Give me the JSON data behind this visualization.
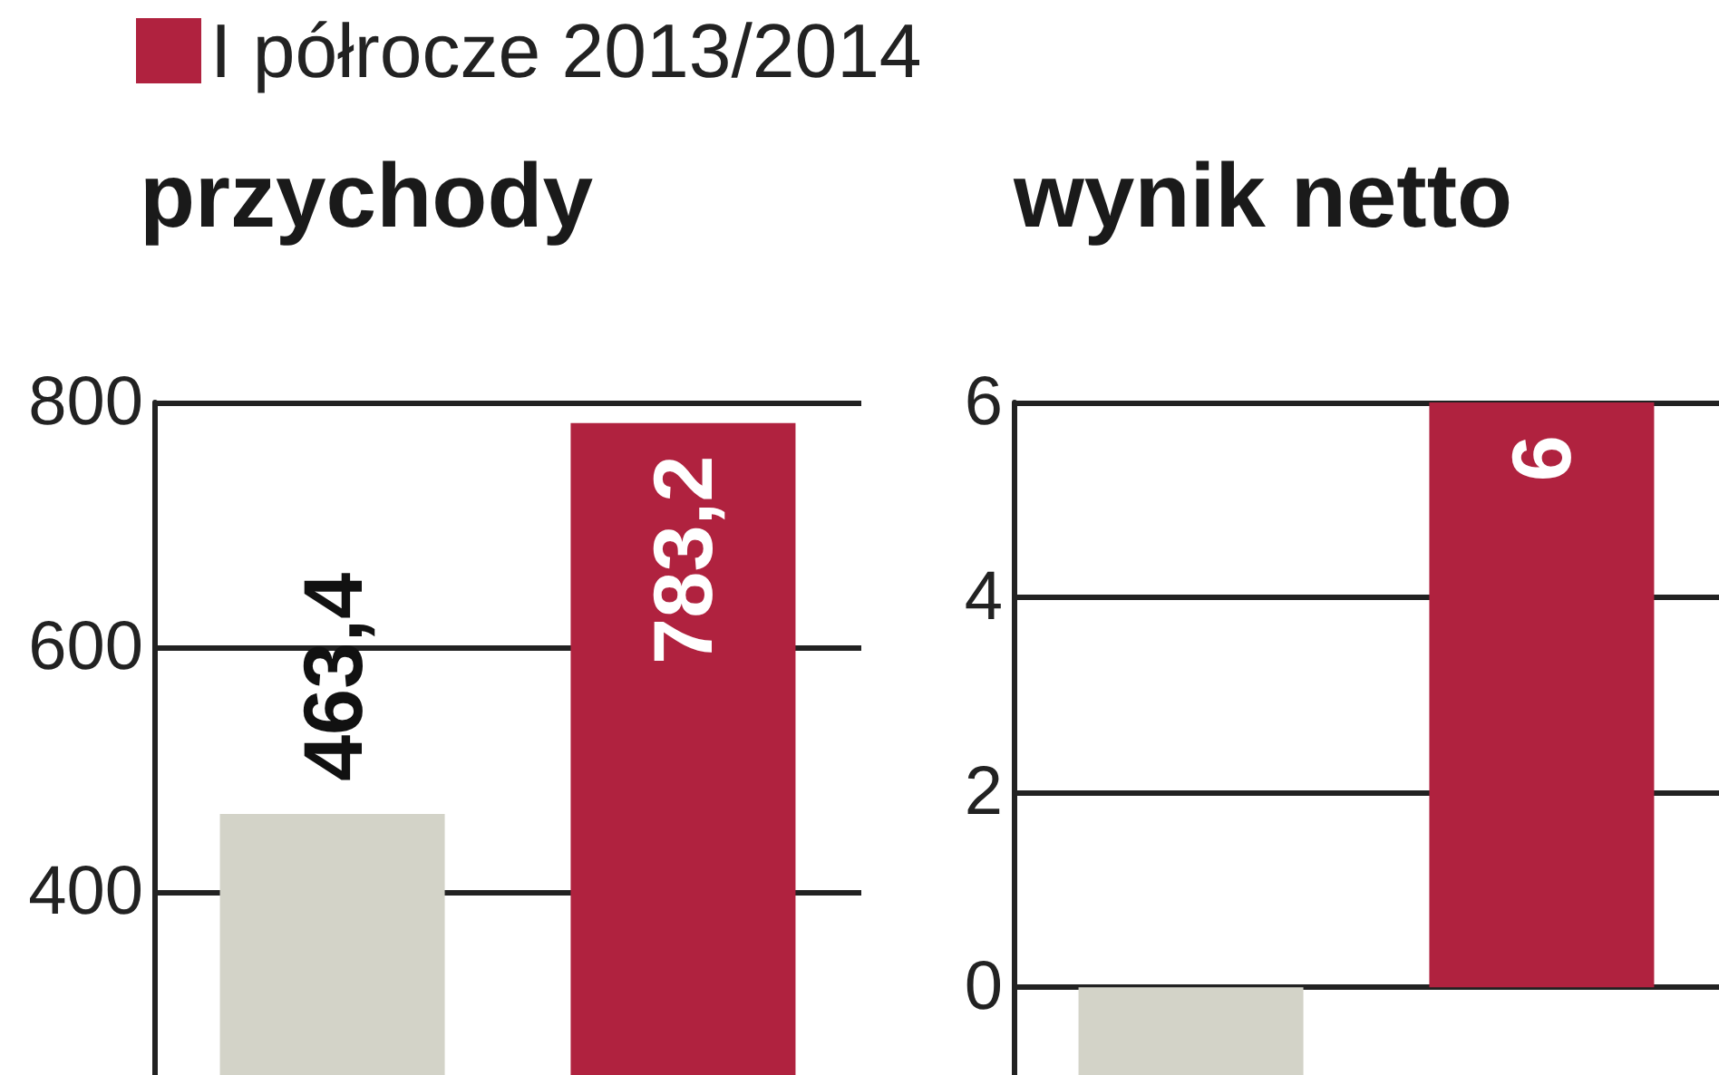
{
  "chart_data": [
    {
      "type": "bar",
      "title": "przychody",
      "categories": [
        null
      ],
      "series": [
        {
          "color": "#d3d3c8",
          "values": [
            463.4
          ],
          "value_labels": [
            "463,4"
          ]
        },
        {
          "name": "I półrocze 2013/2014",
          "color": "#b0223f",
          "values": [
            783.2
          ],
          "value_labels": [
            "783,2"
          ]
        }
      ],
      "ylim": [
        250,
        800
      ],
      "yticks": [
        400,
        600,
        800
      ],
      "grid": "y",
      "legend": "top left",
      "tick_labels": "y"
    },
    {
      "type": "bar",
      "title": "wynik netto",
      "categories": [
        null
      ],
      "series": [
        {
          "color": "#d3d3c8",
          "values": [
            -0.9
          ],
          "value_labels": [
            null
          ]
        },
        {
          "color": "#b0223f",
          "values": [
            6
          ],
          "value_labels": [
            "6"
          ]
        }
      ],
      "ylim": [
        -0.9,
        6
      ],
      "yticks": [
        0,
        2,
        4,
        6
      ],
      "grid": "y",
      "legend": false,
      "tick_labels": "y"
    }
  ]
}
